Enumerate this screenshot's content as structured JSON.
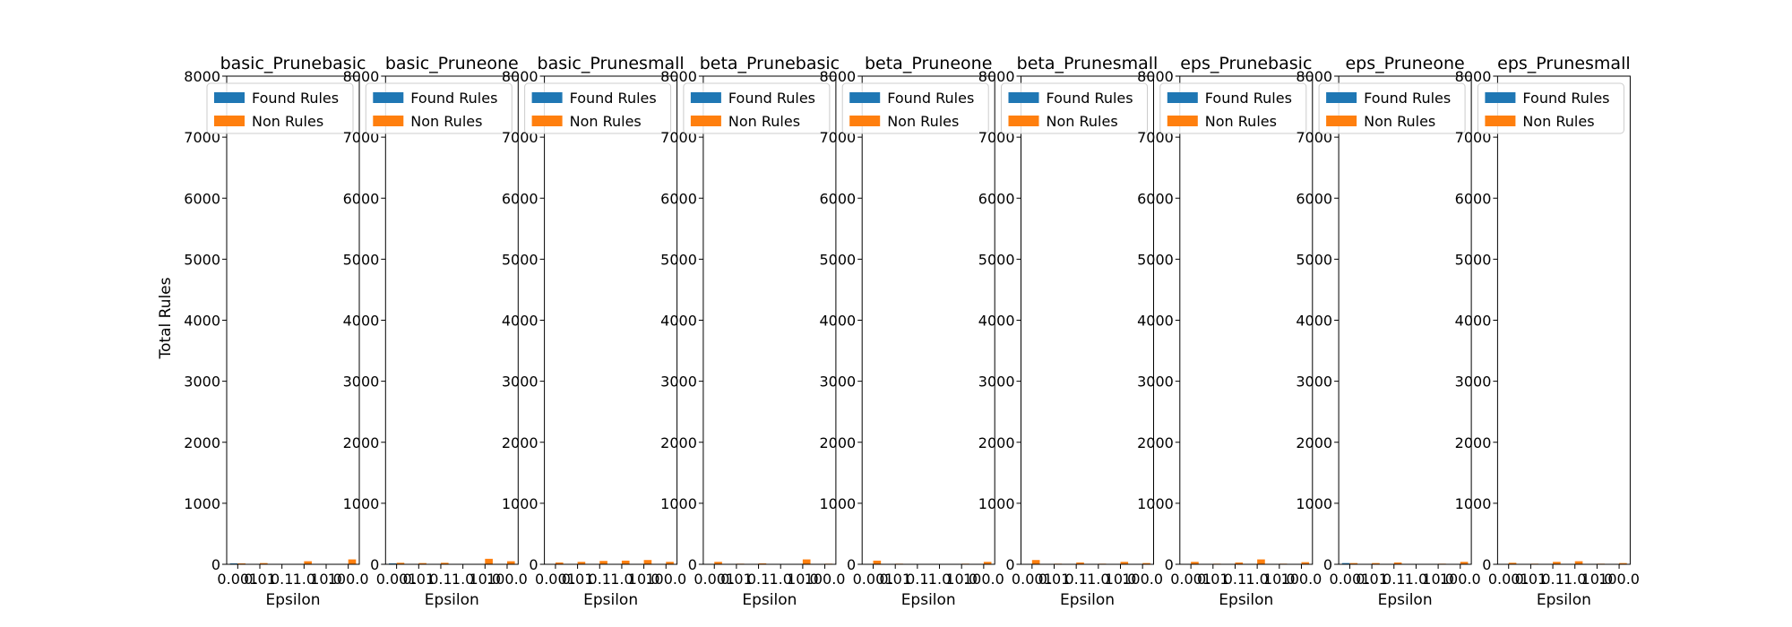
{
  "figure": {
    "ylabel": "Total Rules",
    "xlabel": "Epsilon",
    "legend_location": "upper-right",
    "colors": {
      "found": "#1f77b4",
      "non": "#ff7f0e"
    }
  },
  "chart_data": [
    {
      "type": "bar",
      "title": "basic_Prunebasic",
      "categories": [
        "0.001",
        "0.01",
        "0.1",
        "1.0",
        "10.0",
        "100.0"
      ],
      "series": [
        {
          "name": "Found Rules",
          "values": [
            15,
            5,
            5,
            5,
            5,
            5
          ]
        },
        {
          "name": "Non Rules",
          "values": [
            15,
            20,
            5,
            50,
            5,
            80
          ]
        }
      ],
      "ylim": [
        0,
        8000
      ],
      "yticks": [
        0,
        1000,
        2000,
        3000,
        4000,
        5000,
        6000,
        7000,
        8000
      ],
      "xlabel": "Epsilon",
      "ylabel": "Total Rules",
      "legend": "upper-right"
    },
    {
      "type": "bar",
      "title": "basic_Pruneone",
      "categories": [
        "0.001",
        "0.01",
        "0.1",
        "1.0",
        "10.0",
        "100.0"
      ],
      "series": [
        {
          "name": "Found Rules",
          "values": [
            15,
            5,
            5,
            5,
            5,
            5
          ]
        },
        {
          "name": "Non Rules",
          "values": [
            25,
            20,
            25,
            5,
            90,
            50
          ]
        }
      ],
      "ylim": [
        0,
        8000
      ],
      "yticks": [
        0,
        1000,
        2000,
        3000,
        4000,
        5000,
        6000,
        7000,
        8000
      ],
      "xlabel": "Epsilon",
      "legend": "upper-right"
    },
    {
      "type": "bar",
      "title": "basic_Prunesmall",
      "categories": [
        "0.001",
        "0.01",
        "0.1",
        "1.0",
        "10.0",
        "100.0"
      ],
      "series": [
        {
          "name": "Found Rules",
          "values": [
            5,
            5,
            5,
            5,
            5,
            5
          ]
        },
        {
          "name": "Non Rules",
          "values": [
            30,
            40,
            55,
            60,
            70,
            40
          ]
        }
      ],
      "ylim": [
        0,
        8000
      ],
      "yticks": [
        0,
        1000,
        2000,
        3000,
        4000,
        5000,
        6000,
        7000,
        8000
      ],
      "xlabel": "Epsilon",
      "legend": "upper-right"
    },
    {
      "type": "bar",
      "title": "beta_Prunebasic",
      "categories": [
        "0.001",
        "0.01",
        "0.1",
        "1.0",
        "10.0",
        "100.0"
      ],
      "series": [
        {
          "name": "Found Rules",
          "values": [
            5,
            5,
            5,
            5,
            5,
            5
          ]
        },
        {
          "name": "Non Rules",
          "values": [
            40,
            10,
            15,
            5,
            80,
            10
          ]
        }
      ],
      "ylim": [
        0,
        8000
      ],
      "yticks": [
        0,
        1000,
        2000,
        3000,
        4000,
        5000,
        6000,
        7000,
        8000
      ],
      "xlabel": "Epsilon",
      "legend": "upper-right"
    },
    {
      "type": "bar",
      "title": "beta_Pruneone",
      "categories": [
        "0.001",
        "0.01",
        "0.1",
        "1.0",
        "10.0",
        "100.0"
      ],
      "series": [
        {
          "name": "Found Rules",
          "values": [
            5,
            5,
            5,
            5,
            5,
            5
          ]
        },
        {
          "name": "Non Rules",
          "values": [
            60,
            10,
            5,
            5,
            10,
            40
          ]
        }
      ],
      "ylim": [
        0,
        8000
      ],
      "yticks": [
        0,
        1000,
        2000,
        3000,
        4000,
        5000,
        6000,
        7000,
        8000
      ],
      "xlabel": "Epsilon",
      "legend": "upper-right"
    },
    {
      "type": "bar",
      "title": "beta_Prunesmall",
      "categories": [
        "0.001",
        "0.01",
        "0.1",
        "1.0",
        "10.0",
        "100.0"
      ],
      "series": [
        {
          "name": "Found Rules",
          "values": [
            5,
            5,
            5,
            5,
            5,
            5
          ]
        },
        {
          "name": "Non Rules",
          "values": [
            70,
            10,
            30,
            10,
            40,
            20
          ]
        }
      ],
      "ylim": [
        0,
        8000
      ],
      "yticks": [
        0,
        1000,
        2000,
        3000,
        4000,
        5000,
        6000,
        7000,
        8000
      ],
      "xlabel": "Epsilon",
      "legend": "upper-right"
    },
    {
      "type": "bar",
      "title": "eps_Prunebasic",
      "categories": [
        "0.001",
        "0.01",
        "0.1",
        "1.0",
        "10.0",
        "100.0"
      ],
      "series": [
        {
          "name": "Found Rules",
          "values": [
            5,
            5,
            5,
            5,
            5,
            5
          ]
        },
        {
          "name": "Non Rules",
          "values": [
            40,
            10,
            30,
            80,
            10,
            35
          ]
        }
      ],
      "ylim": [
        0,
        8000
      ],
      "yticks": [
        0,
        1000,
        2000,
        3000,
        4000,
        5000,
        6000,
        7000,
        8000
      ],
      "xlabel": "Epsilon",
      "legend": "upper-right"
    },
    {
      "type": "bar",
      "title": "eps_Pruneone",
      "categories": [
        "0.001",
        "0.01",
        "0.1",
        "1.0",
        "10.0",
        "100.0"
      ],
      "series": [
        {
          "name": "Found Rules",
          "values": [
            20,
            5,
            5,
            5,
            5,
            5
          ]
        },
        {
          "name": "Non Rules",
          "values": [
            20,
            20,
            30,
            5,
            10,
            40
          ]
        }
      ],
      "ylim": [
        0,
        8000
      ],
      "yticks": [
        0,
        1000,
        2000,
        3000,
        4000,
        5000,
        6000,
        7000,
        8000
      ],
      "xlabel": "Epsilon",
      "legend": "upper-right"
    },
    {
      "type": "bar",
      "title": "eps_Prunesmall",
      "categories": [
        "0.001",
        "0.01",
        "0.1",
        "1.0",
        "10.0",
        "100.0"
      ],
      "series": [
        {
          "name": "Found Rules",
          "values": [
            5,
            5,
            5,
            5,
            5,
            5
          ]
        },
        {
          "name": "Non Rules",
          "values": [
            25,
            10,
            40,
            50,
            10,
            20
          ]
        }
      ],
      "ylim": [
        0,
        8000
      ],
      "yticks": [
        0,
        1000,
        2000,
        3000,
        4000,
        5000,
        6000,
        7000,
        8000
      ],
      "xlabel": "Epsilon",
      "legend": "upper-right"
    }
  ]
}
